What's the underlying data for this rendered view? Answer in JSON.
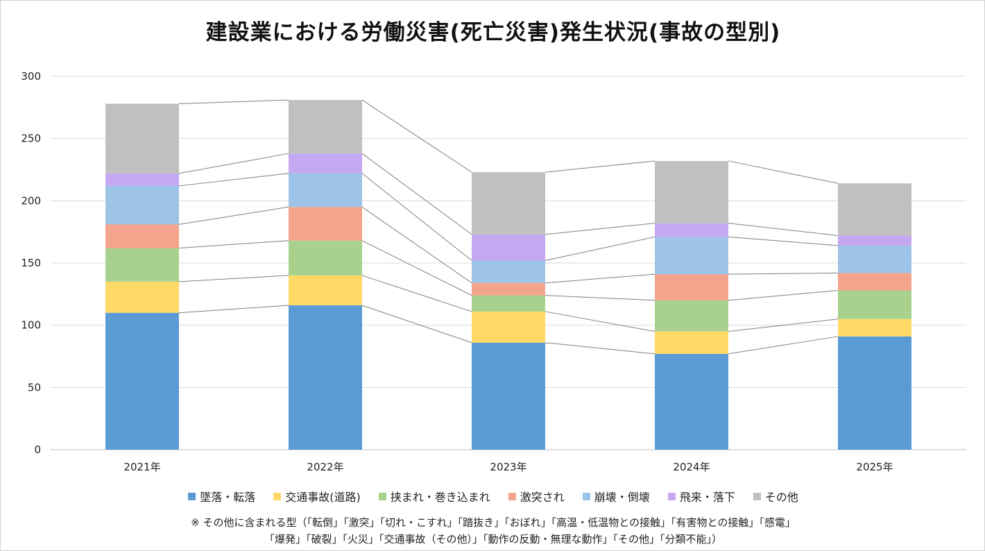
{
  "chart_data": {
    "type": "bar",
    "stacked": true,
    "title": "建設業における労働災害(死亡災害)発生状況(事故の型別)",
    "categories": [
      "2021年",
      "2022年",
      "2023年",
      "2024年",
      "2025年"
    ],
    "ylim": [
      0,
      300
    ],
    "yticks": [
      0,
      50,
      100,
      150,
      200,
      250,
      300
    ],
    "grid": true,
    "legend_position": "bottom",
    "series_connectors": true,
    "series": [
      {
        "name": "墜落・転落",
        "color": "#5b9bd5",
        "values": [
          110,
          116,
          86,
          77,
          91
        ]
      },
      {
        "name": "交通事故(道路)",
        "color": "#ffd966",
        "values": [
          25,
          24,
          25,
          18,
          14
        ]
      },
      {
        "name": "挟まれ・巻き込まれ",
        "color": "#a9d18e",
        "values": [
          27,
          28,
          13,
          25,
          23
        ]
      },
      {
        "name": "激突され",
        "color": "#f4a48c",
        "values": [
          19,
          27,
          10,
          21,
          14
        ]
      },
      {
        "name": "崩壊・倒壊",
        "color": "#9dc3e6",
        "values": [
          31,
          27,
          18,
          30,
          22
        ]
      },
      {
        "name": "飛来・落下",
        "color": "#c5a8f2",
        "values": [
          10,
          16,
          21,
          11,
          8
        ]
      },
      {
        "name": "その他",
        "color": "#c0c0c0",
        "values": [
          56,
          43,
          50,
          50,
          42
        ]
      }
    ]
  },
  "footnote": {
    "line1": "※ その他に含まれる型（「転倒」「激突」「切れ・こすれ」「踏抜き」「おぼれ」「高温・低温物との接触」「有害物との接触」「感電」",
    "line2": "「爆発」「破裂」「火災」「交通事故（その他）」「動作の反動・無理な動作」「その他」「分類不能」）"
  }
}
